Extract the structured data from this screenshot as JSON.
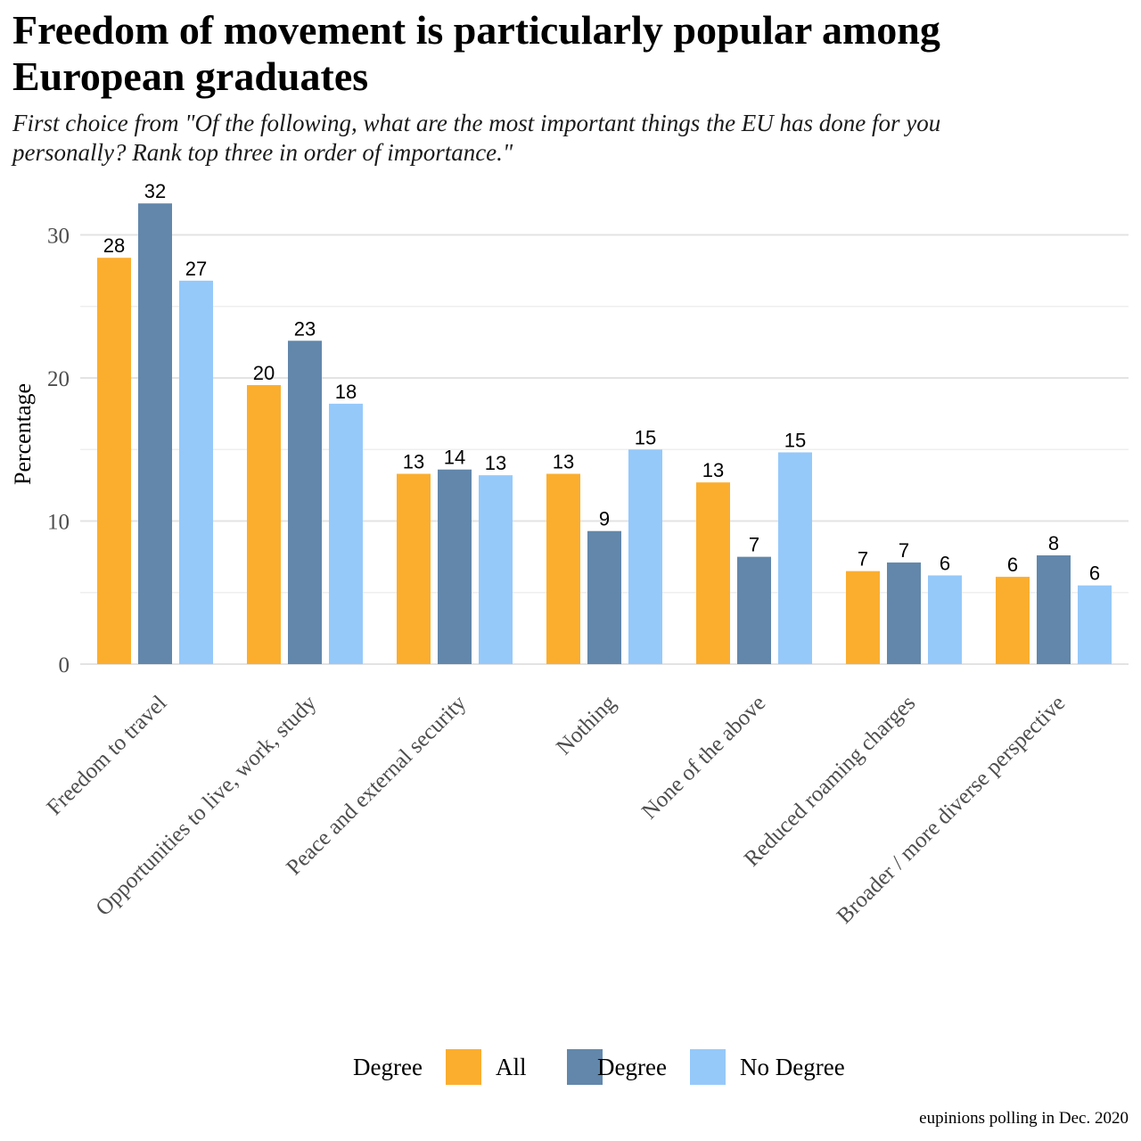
{
  "chart_data": {
    "type": "bar",
    "title": "Freedom of movement is particularly popular among\n European graduates",
    "subtitle": "First choice from \"Of the following, what are the most important things the EU has done for you\n personally? Rank top three in order of importance.\"",
    "ylabel": "Percentage",
    "xlabel": "",
    "ylim": [
      0,
      33.5
    ],
    "yticks": [
      0,
      10,
      20,
      30
    ],
    "grid": true,
    "legend_title": "Degree",
    "legend_position": "bottom",
    "caption": "eupinions polling in Dec. 2020",
    "categories": [
      "Freedom to travel",
      "Opportunities to live, work, study",
      "Peace and external security",
      "Nothing",
      "None of the above",
      "Reduced roaming charges",
      "Broader / more diverse perspective"
    ],
    "series": [
      {
        "name": "All",
        "color": "#FBAE2E",
        "values": [
          28.4,
          19.5,
          13.3,
          13.3,
          12.7,
          6.5,
          6.1
        ],
        "labels": [
          "28",
          "20",
          "13",
          "13",
          "13",
          "7",
          "6"
        ]
      },
      {
        "name": "Degree",
        "color": "#6287AB",
        "values": [
          32.2,
          22.6,
          13.6,
          9.3,
          7.5,
          7.1,
          7.6
        ],
        "labels": [
          "32",
          "23",
          "14",
          "9",
          "7",
          "7",
          "8"
        ]
      },
      {
        "name": "No Degree",
        "color": "#95C9FA",
        "values": [
          26.8,
          18.2,
          13.2,
          15.0,
          14.8,
          6.2,
          5.5
        ],
        "labels": [
          "27",
          "18",
          "13",
          "15",
          "15",
          "6",
          "6"
        ]
      }
    ]
  }
}
